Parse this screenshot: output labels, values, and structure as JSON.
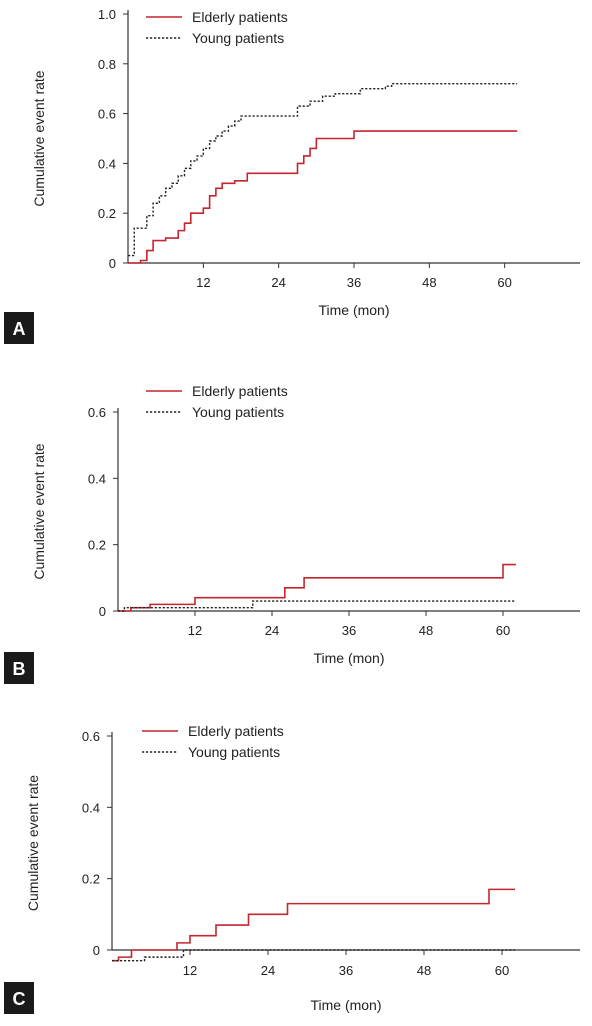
{
  "panels": [
    {
      "label": "A"
    },
    {
      "label": "B"
    },
    {
      "label": "C"
    }
  ],
  "colors": {
    "elderly": "#c4262e",
    "young": "#222222",
    "axis": "#333333"
  },
  "chart_data": [
    {
      "type": "line",
      "panel": "A",
      "xlabel": "Time (mon)",
      "ylabel": "Cumulative event rate",
      "xlim": [
        0,
        72
      ],
      "ylim": [
        0,
        1.0
      ],
      "x_ticks": [
        12,
        24,
        36,
        48,
        60
      ],
      "y_ticks": [
        0,
        0.2,
        0.4,
        0.6,
        0.8,
        1.0
      ],
      "y_tick_labels": [
        "0",
        "0.2",
        "0.4",
        "0.6",
        "0.8",
        "1.0"
      ],
      "legend": "top-left",
      "series": [
        {
          "name": "Elderly patients",
          "style": "solid",
          "x": [
            0,
            2,
            3,
            4,
            6,
            8,
            9,
            10,
            12,
            13,
            14,
            15,
            17,
            19,
            26,
            27,
            28,
            29,
            30,
            33,
            36,
            62
          ],
          "y": [
            0,
            0.01,
            0.05,
            0.09,
            0.1,
            0.13,
            0.16,
            0.2,
            0.22,
            0.27,
            0.3,
            0.32,
            0.33,
            0.36,
            0.36,
            0.4,
            0.43,
            0.46,
            0.5,
            0.5,
            0.53,
            0.53
          ]
        },
        {
          "name": "Young patients",
          "style": "dotted",
          "x": [
            0,
            1,
            2,
            3,
            4,
            5,
            6,
            7,
            8,
            9,
            10,
            11,
            12,
            13,
            14,
            15,
            16,
            17,
            18,
            20,
            27,
            29,
            31,
            33,
            37,
            41,
            42,
            62
          ],
          "y": [
            0.03,
            0.14,
            0.14,
            0.19,
            0.24,
            0.27,
            0.3,
            0.32,
            0.35,
            0.38,
            0.41,
            0.43,
            0.46,
            0.49,
            0.51,
            0.53,
            0.55,
            0.57,
            0.59,
            0.59,
            0.63,
            0.65,
            0.67,
            0.68,
            0.7,
            0.71,
            0.72,
            0.72
          ]
        }
      ]
    },
    {
      "type": "line",
      "panel": "B",
      "xlabel": "Time (mon)",
      "ylabel": "Cumulative event rate",
      "xlim": [
        0,
        72
      ],
      "ylim": [
        0,
        0.6
      ],
      "x_ticks": [
        12,
        24,
        36,
        48,
        60
      ],
      "y_ticks": [
        0,
        0.2,
        0.4,
        0.6
      ],
      "y_tick_labels": [
        "0",
        "0.2",
        "0.4",
        "0.6"
      ],
      "legend": "top-left",
      "series": [
        {
          "name": "Elderly patients",
          "style": "solid",
          "x": [
            0,
            2,
            5,
            12,
            26,
            29,
            60,
            62
          ],
          "y": [
            0,
            0.01,
            0.02,
            0.04,
            0.07,
            0.1,
            0.14,
            0.14
          ]
        },
        {
          "name": "Young patients",
          "style": "dotted",
          "x": [
            0,
            1,
            21,
            62
          ],
          "y": [
            0,
            0.01,
            0.03,
            0.03
          ]
        }
      ]
    },
    {
      "type": "line",
      "panel": "C",
      "xlabel": "Time (mon)",
      "ylabel": "Cumulative event rate",
      "xlim": [
        0,
        72
      ],
      "ylim": [
        0,
        0.6
      ],
      "x_ticks": [
        12,
        24,
        36,
        48,
        60
      ],
      "y_ticks": [
        0,
        0.2,
        0.4,
        0.6
      ],
      "y_tick_labels": [
        "0",
        "0.2",
        "0.4",
        "0.6"
      ],
      "legend": "top-left",
      "series": [
        {
          "name": "Elderly patients",
          "style": "solid",
          "x": [
            0,
            1,
            3,
            10,
            12,
            16,
            21,
            27,
            58,
            62
          ],
          "y": [
            -0.03,
            -0.02,
            0.0,
            0.02,
            0.04,
            0.07,
            0.1,
            0.13,
            0.17,
            0.17
          ]
        },
        {
          "name": "Young patients",
          "style": "dotted",
          "x": [
            0,
            1,
            5,
            11,
            62
          ],
          "y": [
            -0.03,
            -0.03,
            -0.02,
            0.0,
            0.0
          ]
        }
      ]
    }
  ]
}
